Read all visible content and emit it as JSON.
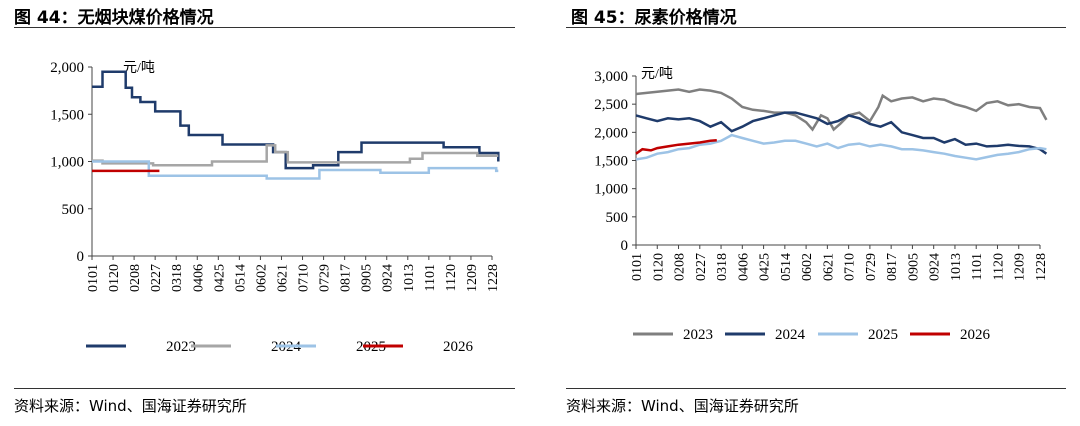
{
  "left": {
    "title": "图 44：无烟块煤价格情况",
    "source": "资料来源：Wind、国海证券研究所"
  },
  "right": {
    "title": "图 45：尿素价格情况",
    "source": "资料来源：Wind、国海证券研究所"
  },
  "chart_data": [
    {
      "type": "line",
      "title": "无烟块煤价格情况",
      "unit_label": "元/吨",
      "ylim": [
        0,
        2000
      ],
      "yticks": [
        "0",
        "500",
        "1,000",
        "1,500",
        "2,000"
      ],
      "x_ticks": [
        "0101",
        "0120",
        "0208",
        "0227",
        "0318",
        "0406",
        "0425",
        "0514",
        "0602",
        "0621",
        "0710",
        "0729",
        "0817",
        "0905",
        "0924",
        "1013",
        "1101",
        "1120",
        "1209",
        "1228"
      ],
      "legend": "bottom",
      "series": [
        {
          "name": "2023",
          "color": "#1f3b6b",
          "points": [
            [
              0,
              1790
            ],
            [
              0.5,
              1790
            ],
            [
              0.5,
              1950
            ],
            [
              1.6,
              1950
            ],
            [
              1.6,
              1780
            ],
            [
              1.9,
              1780
            ],
            [
              1.9,
              1680
            ],
            [
              2.3,
              1680
            ],
            [
              2.3,
              1630
            ],
            [
              3.0,
              1630
            ],
            [
              3.0,
              1530
            ],
            [
              4.2,
              1530
            ],
            [
              4.2,
              1380
            ],
            [
              4.6,
              1380
            ],
            [
              4.6,
              1280
            ],
            [
              6.2,
              1280
            ],
            [
              6.2,
              1180
            ],
            [
              8.6,
              1180
            ],
            [
              8.6,
              1100
            ],
            [
              9.2,
              1100
            ],
            [
              9.2,
              930
            ],
            [
              10.5,
              930
            ],
            [
              10.5,
              960
            ],
            [
              11.7,
              960
            ],
            [
              11.7,
              1100
            ],
            [
              12.8,
              1100
            ],
            [
              12.8,
              1200
            ],
            [
              16.7,
              1200
            ],
            [
              16.7,
              1150
            ],
            [
              18.4,
              1150
            ],
            [
              18.4,
              1090
            ],
            [
              19.3,
              1090
            ],
            [
              19.3,
              1000
            ]
          ]
        },
        {
          "name": "2024",
          "color": "#a6a6a6",
          "points": [
            [
              0,
              1010
            ],
            [
              0.5,
              1010
            ],
            [
              0.5,
              980
            ],
            [
              2.9,
              980
            ],
            [
              2.9,
              960
            ],
            [
              5.7,
              960
            ],
            [
              5.7,
              1000
            ],
            [
              8.3,
              1000
            ],
            [
              8.3,
              1170
            ],
            [
              8.7,
              1170
            ],
            [
              8.7,
              1100
            ],
            [
              9.3,
              1100
            ],
            [
              9.3,
              990
            ],
            [
              15.1,
              990
            ],
            [
              15.1,
              1030
            ],
            [
              15.7,
              1030
            ],
            [
              15.7,
              1090
            ],
            [
              18.3,
              1090
            ],
            [
              18.3,
              1060
            ],
            [
              19.3,
              1060
            ]
          ]
        },
        {
          "name": "2025",
          "color": "#9dc3e6",
          "points": [
            [
              0,
              1000
            ],
            [
              2.7,
              1000
            ],
            [
              2.7,
              850
            ],
            [
              8.3,
              850
            ],
            [
              8.3,
              820
            ],
            [
              10.8,
              820
            ],
            [
              10.8,
              910
            ],
            [
              13.7,
              910
            ],
            [
              13.7,
              880
            ],
            [
              16.0,
              880
            ],
            [
              16.0,
              930
            ],
            [
              19.2,
              930
            ],
            [
              19.2,
              900
            ],
            [
              19.3,
              900
            ]
          ]
        },
        {
          "name": "2026",
          "color": "#c00000",
          "points": [
            [
              0,
              900
            ],
            [
              3.2,
              900
            ]
          ]
        }
      ]
    },
    {
      "type": "line",
      "title": "尿素价格情况",
      "unit_label": "元/吨",
      "ylim": [
        0,
        3000
      ],
      "yticks": [
        "0",
        "500",
        "1,000",
        "1,500",
        "2,000",
        "2,500",
        "3,000"
      ],
      "x_ticks": [
        "0101",
        "0120",
        "0208",
        "0227",
        "0318",
        "0406",
        "0425",
        "0514",
        "0602",
        "0621",
        "0710",
        "0729",
        "0817",
        "0905",
        "0924",
        "1013",
        "1101",
        "1120",
        "1209",
        "1228"
      ],
      "legend": "bottom",
      "series": [
        {
          "name": "2023",
          "color": "#7f7f7f",
          "points": [
            [
              0,
              2680
            ],
            [
              0.5,
              2700
            ],
            [
              1,
              2720
            ],
            [
              1.5,
              2740
            ],
            [
              2,
              2760
            ],
            [
              2.5,
              2720
            ],
            [
              3,
              2760
            ],
            [
              3.5,
              2740
            ],
            [
              4,
              2700
            ],
            [
              4.5,
              2600
            ],
            [
              5,
              2450
            ],
            [
              5.5,
              2400
            ],
            [
              6,
              2380
            ],
            [
              6.5,
              2350
            ],
            [
              7,
              2350
            ],
            [
              7.5,
              2300
            ],
            [
              8,
              2180
            ],
            [
              8.3,
              2050
            ],
            [
              8.7,
              2300
            ],
            [
              9,
              2250
            ],
            [
              9.3,
              2050
            ],
            [
              9.6,
              2150
            ],
            [
              10,
              2300
            ],
            [
              10.5,
              2350
            ],
            [
              11,
              2200
            ],
            [
              11.4,
              2450
            ],
            [
              11.6,
              2650
            ],
            [
              12,
              2550
            ],
            [
              12.5,
              2600
            ],
            [
              13,
              2620
            ],
            [
              13.5,
              2550
            ],
            [
              14,
              2600
            ],
            [
              14.5,
              2580
            ],
            [
              15,
              2500
            ],
            [
              15.5,
              2450
            ],
            [
              16,
              2380
            ],
            [
              16.5,
              2520
            ],
            [
              17,
              2550
            ],
            [
              17.5,
              2480
            ],
            [
              18,
              2500
            ],
            [
              18.5,
              2450
            ],
            [
              19,
              2430
            ],
            [
              19.3,
              2220
            ]
          ]
        },
        {
          "name": "2024",
          "color": "#1f3b6b",
          "points": [
            [
              0,
              2300
            ],
            [
              0.5,
              2250
            ],
            [
              1,
              2200
            ],
            [
              1.5,
              2250
            ],
            [
              2,
              2230
            ],
            [
              2.5,
              2250
            ],
            [
              3,
              2200
            ],
            [
              3.5,
              2100
            ],
            [
              4,
              2180
            ],
            [
              4.5,
              2020
            ],
            [
              5,
              2100
            ],
            [
              5.5,
              2200
            ],
            [
              6,
              2250
            ],
            [
              6.5,
              2300
            ],
            [
              7,
              2350
            ],
            [
              7.5,
              2350
            ],
            [
              8,
              2300
            ],
            [
              8.5,
              2250
            ],
            [
              9,
              2150
            ],
            [
              9.5,
              2200
            ],
            [
              10,
              2300
            ],
            [
              10.5,
              2250
            ],
            [
              11,
              2150
            ],
            [
              11.5,
              2100
            ],
            [
              12,
              2180
            ],
            [
              12.5,
              2000
            ],
            [
              13,
              1950
            ],
            [
              13.5,
              1900
            ],
            [
              14,
              1900
            ],
            [
              14.5,
              1820
            ],
            [
              15,
              1880
            ],
            [
              15.5,
              1780
            ],
            [
              16,
              1800
            ],
            [
              16.5,
              1750
            ],
            [
              17,
              1760
            ],
            [
              17.5,
              1780
            ],
            [
              18,
              1760
            ],
            [
              18.5,
              1750
            ],
            [
              19,
              1700
            ],
            [
              19.3,
              1620
            ]
          ]
        },
        {
          "name": "2025",
          "color": "#9dc3e6",
          "points": [
            [
              0,
              1520
            ],
            [
              0.5,
              1550
            ],
            [
              1,
              1620
            ],
            [
              1.5,
              1650
            ],
            [
              2,
              1700
            ],
            [
              2.5,
              1720
            ],
            [
              3,
              1780
            ],
            [
              3.5,
              1800
            ],
            [
              4,
              1850
            ],
            [
              4.5,
              1950
            ],
            [
              5,
              1900
            ],
            [
              5.5,
              1850
            ],
            [
              6,
              1800
            ],
            [
              6.5,
              1820
            ],
            [
              7,
              1850
            ],
            [
              7.5,
              1850
            ],
            [
              8,
              1800
            ],
            [
              8.5,
              1750
            ],
            [
              9,
              1800
            ],
            [
              9.5,
              1720
            ],
            [
              10,
              1780
            ],
            [
              10.5,
              1800
            ],
            [
              11,
              1750
            ],
            [
              11.5,
              1780
            ],
            [
              12,
              1750
            ],
            [
              12.5,
              1700
            ],
            [
              13,
              1700
            ],
            [
              13.5,
              1680
            ],
            [
              14,
              1650
            ],
            [
              14.5,
              1620
            ],
            [
              15,
              1580
            ],
            [
              15.5,
              1550
            ],
            [
              16,
              1520
            ],
            [
              16.5,
              1560
            ],
            [
              17,
              1600
            ],
            [
              17.5,
              1620
            ],
            [
              18,
              1650
            ],
            [
              18.5,
              1700
            ],
            [
              19,
              1720
            ],
            [
              19.3,
              1700
            ]
          ]
        },
        {
          "name": "2026",
          "color": "#c00000",
          "points": [
            [
              0,
              1620
            ],
            [
              0.3,
              1700
            ],
            [
              0.7,
              1680
            ],
            [
              1,
              1720
            ],
            [
              1.5,
              1750
            ],
            [
              2,
              1780
            ],
            [
              2.5,
              1800
            ],
            [
              3,
              1820
            ],
            [
              3.5,
              1850
            ],
            [
              3.8,
              1860
            ]
          ]
        }
      ]
    }
  ]
}
